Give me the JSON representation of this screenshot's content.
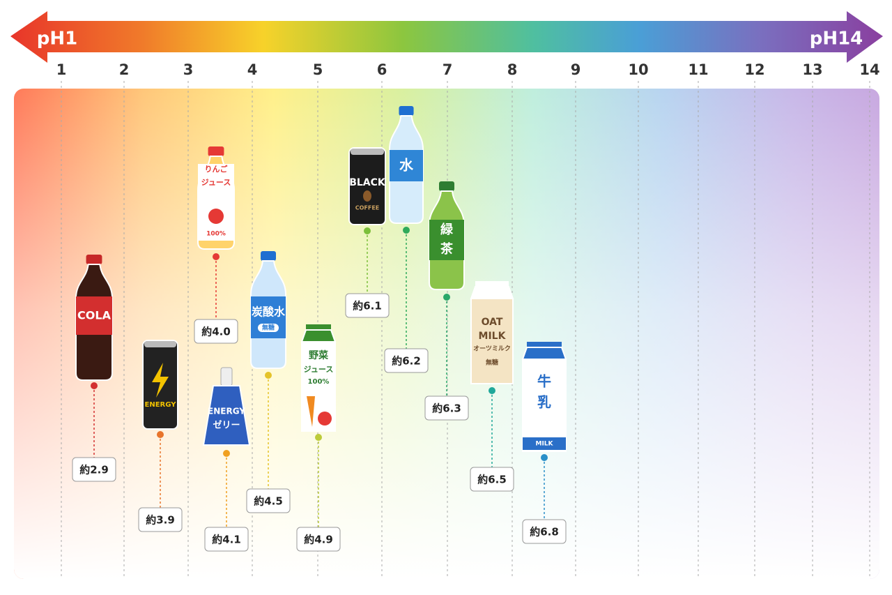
{
  "header": {
    "left": "pH1",
    "right": "pH14"
  },
  "scale": [
    "1",
    "2",
    "3",
    "4",
    "5",
    "6",
    "7",
    "8",
    "9",
    "10",
    "11",
    "12",
    "13",
    "14"
  ],
  "items": [
    {
      "label": "約2.9",
      "texts": [
        "COLA"
      ]
    },
    {
      "label": "約3.9",
      "texts": [
        "ENERGY"
      ]
    },
    {
      "label": "約4.0",
      "texts": [
        "りんご",
        "ジュース",
        "100%"
      ]
    },
    {
      "label": "約4.1",
      "texts": [
        "ENERGY",
        "ゼリー"
      ]
    },
    {
      "label": "約4.5",
      "texts": [
        "炭酸水",
        "無糖"
      ]
    },
    {
      "label": "約4.9",
      "texts": [
        "野菜",
        "ジュース",
        "100%"
      ]
    },
    {
      "label": "約6.1",
      "texts": [
        "BLACK",
        "COFFEE"
      ]
    },
    {
      "label": "約6.2",
      "texts": [
        "水"
      ]
    },
    {
      "label": "約6.3",
      "texts": [
        "緑",
        "茶"
      ]
    },
    {
      "label": "約6.5",
      "texts": [
        "OAT",
        "MILK",
        "オーツミルク",
        "無糖"
      ]
    },
    {
      "label": "約6.8",
      "texts": [
        "牛",
        "乳",
        "MILK"
      ]
    }
  ]
}
